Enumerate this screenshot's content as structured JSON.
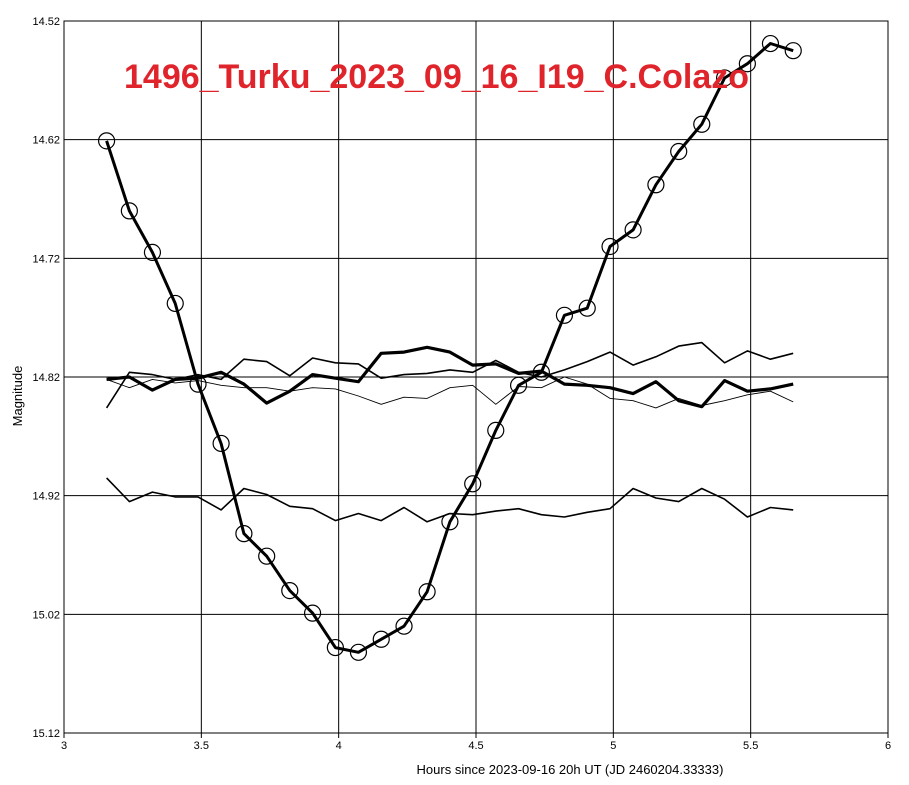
{
  "chart_data": {
    "type": "line",
    "title": "1496_Turku_2023_09_16_I19_C.Colazo",
    "xlabel": "Hours since 2023-09-16 20h UT (JD 2460204.33333)",
    "ylabel": "Magnitude",
    "xlim": [
      3,
      6
    ],
    "ylim": [
      14.52,
      15.12
    ],
    "y_inverted": true,
    "grid": true,
    "x_ticks": [
      "3",
      "3.5",
      "4",
      "4.5",
      "5",
      "5.5",
      "6"
    ],
    "y_ticks": [
      "14.52",
      "14.62",
      "14.72",
      "14.82",
      "14.92",
      "15.02",
      "15.12"
    ],
    "colors": {
      "series": "#000000",
      "title": "#e0242b",
      "grid": "#000000"
    },
    "series": [
      {
        "role": "target",
        "markers": "open-circle",
        "x": [
          3.155,
          3.238,
          3.322,
          3.405,
          3.488,
          3.572,
          3.655,
          3.738,
          3.822,
          3.905,
          3.988,
          4.072,
          4.155,
          4.238,
          4.322,
          4.405,
          4.488,
          4.572,
          4.655,
          4.738,
          4.822,
          4.905,
          4.988,
          5.072,
          5.155,
          5.238,
          5.322,
          5.405,
          5.488,
          5.572,
          5.655
        ],
        "y": [
          14.621,
          14.68,
          14.715,
          14.758,
          14.826,
          14.876,
          14.952,
          14.971,
          15.0,
          15.019,
          15.048,
          15.052,
          15.041,
          15.03,
          15.001,
          14.942,
          14.91,
          14.865,
          14.827,
          14.816,
          14.768,
          14.762,
          14.71,
          14.696,
          14.658,
          14.63,
          14.607,
          14.568,
          14.556,
          14.539,
          14.545
        ]
      },
      {
        "role": "comparison",
        "stroke": "heavy",
        "x": [
          3.155,
          3.238,
          3.322,
          3.405,
          3.488,
          3.572,
          3.655,
          3.738,
          3.822,
          3.905,
          3.988,
          4.072,
          4.155,
          4.238,
          4.322,
          4.405,
          4.488,
          4.572,
          4.655,
          4.738,
          4.822,
          4.905,
          4.988,
          5.072,
          5.155,
          5.238,
          5.322,
          5.405,
          5.488,
          5.572,
          5.655
        ],
        "y": [
          14.822,
          14.82,
          14.831,
          14.822,
          14.821,
          14.816,
          14.826,
          14.842,
          14.832,
          14.818,
          14.821,
          14.824,
          14.8,
          14.799,
          14.795,
          14.799,
          14.81,
          14.809,
          14.817,
          14.815,
          14.826,
          14.827,
          14.829,
          14.834,
          14.824,
          14.84,
          14.845,
          14.823,
          14.832,
          14.83,
          14.826
        ]
      },
      {
        "role": "comparison",
        "stroke": "medium",
        "x": [
          3.155,
          3.238,
          3.322,
          3.405,
          3.488,
          3.572,
          3.655,
          3.738,
          3.822,
          3.905,
          3.988,
          4.072,
          4.155,
          4.238,
          4.322,
          4.405,
          4.488,
          4.572,
          4.655,
          4.738,
          4.822,
          4.905,
          4.988,
          5.072,
          5.155,
          5.238,
          5.322,
          5.405,
          5.488,
          5.572,
          5.655
        ],
        "y": [
          14.846,
          14.816,
          14.818,
          14.822,
          14.818,
          14.822,
          14.805,
          14.807,
          14.819,
          14.804,
          14.808,
          14.809,
          14.821,
          14.818,
          14.817,
          14.814,
          14.816,
          14.806,
          14.816,
          14.82,
          14.814,
          14.807,
          14.799,
          14.81,
          14.803,
          14.794,
          14.791,
          14.808,
          14.798,
          14.805,
          14.8
        ]
      },
      {
        "role": "comparison",
        "stroke": "thin",
        "x": [
          3.155,
          3.238,
          3.322,
          3.405,
          3.488,
          3.572,
          3.655,
          3.738,
          3.822,
          3.905,
          3.988,
          4.072,
          4.155,
          4.238,
          4.322,
          4.405,
          4.488,
          4.572,
          4.655,
          4.738,
          4.822,
          4.905,
          4.988,
          5.072,
          5.155,
          5.238,
          5.322,
          5.405,
          5.488,
          5.572,
          5.655
        ],
        "y": [
          14.822,
          14.829,
          14.822,
          14.825,
          14.823,
          14.827,
          14.829,
          14.829,
          14.832,
          14.829,
          14.83,
          14.836,
          14.843,
          14.837,
          14.838,
          14.829,
          14.827,
          14.843,
          14.828,
          14.829,
          14.82,
          14.826,
          14.838,
          14.84,
          14.846,
          14.838,
          14.844,
          14.84,
          14.835,
          14.832,
          14.841
        ]
      },
      {
        "role": "comparison",
        "stroke": "medium",
        "x": [
          3.155,
          3.238,
          3.322,
          3.405,
          3.488,
          3.572,
          3.655,
          3.738,
          3.822,
          3.905,
          3.988,
          4.072,
          4.155,
          4.238,
          4.322,
          4.405,
          4.488,
          4.572,
          4.655,
          4.738,
          4.822,
          4.905,
          4.988,
          5.072,
          5.155,
          5.238,
          5.322,
          5.405,
          5.488,
          5.572,
          5.655
        ],
        "y": [
          14.905,
          14.925,
          14.917,
          14.921,
          14.921,
          14.932,
          14.914,
          14.919,
          14.929,
          14.931,
          14.941,
          14.935,
          14.941,
          14.93,
          14.942,
          14.935,
          14.936,
          14.933,
          14.931,
          14.936,
          14.938,
          14.934,
          14.931,
          14.914,
          14.922,
          14.925,
          14.914,
          14.923,
          14.938,
          14.93,
          14.932
        ]
      }
    ]
  }
}
